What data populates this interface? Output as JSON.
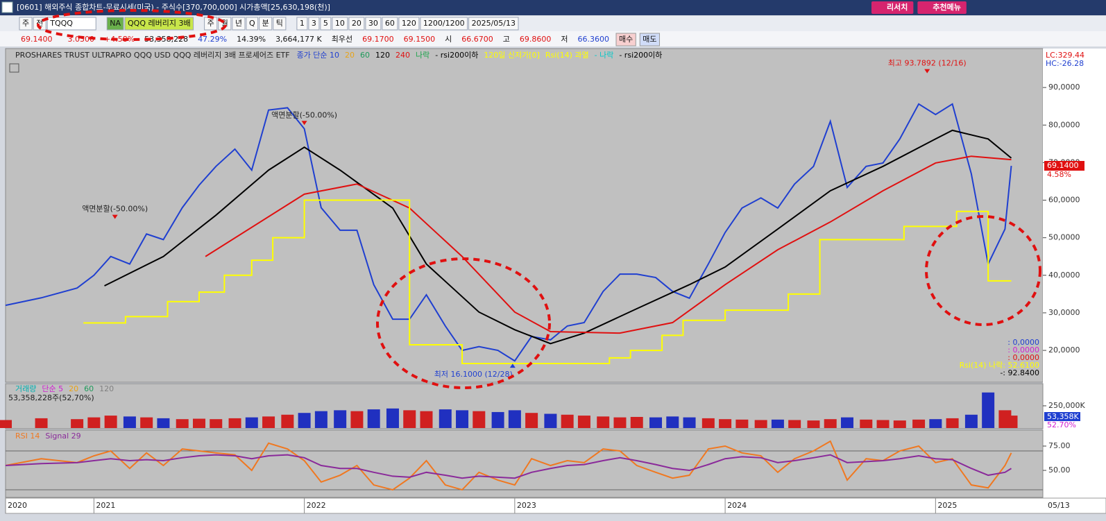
{
  "window": {
    "title": "[0601] 해외주식 종합차트-무료시세(미국) - 주식수[370,700,000] 시가총액[25,630,198(천)]",
    "buttons": [
      "리서치",
      "추천메뉴"
    ]
  },
  "toolbar": {
    "items": [
      "주",
      "전",
      "TQQQ",
      "NA",
      "QQQ 레버리지 3배",
      "주",
      "월",
      "년",
      "Q",
      "분",
      "틱",
      "1",
      "3",
      "5",
      "10",
      "20",
      "30",
      "60",
      "120",
      "1200/1200",
      "2025/05/13"
    ]
  },
  "quote": {
    "items": [
      "69.1400",
      "3.0300",
      "+4.58%",
      "53,358,228",
      "47.29%",
      "14.39%",
      "3,664,177 K",
      "최우선",
      "69.1700",
      "69.1500",
      "시",
      "66.6700",
      "고",
      "69.8600",
      "저",
      "66.3600",
      "매수",
      "매도"
    ]
  },
  "chart_data": [
    {
      "type": "line",
      "title": "PROSHARES TRUST ULTRAPRO QQQ USD  QQQ 레버리지 3배 프로셰어즈 ETF",
      "xlim": [
        2020.58,
        2025.51
      ],
      "ylim": [
        11.7,
        100.0
      ],
      "yticks": [
        {
          "value": 20,
          "label": "20,0000"
        },
        {
          "value": 30,
          "label": "30,0000"
        },
        {
          "value": 40,
          "label": "40,0000"
        },
        {
          "value": 50,
          "label": "50,0000"
        },
        {
          "value": 60,
          "label": "60,0000"
        },
        {
          "value": 70,
          "label": "70,0000"
        },
        {
          "value": 80,
          "label": "80,0000"
        },
        {
          "value": 90,
          "label": "90,0000"
        }
      ],
      "series": [
        {
          "name": "종가 단순 10",
          "color": "#1f3fd0",
          "x": [
            2020.58,
            2020.75,
            2020.92,
            2021.0,
            2021.08,
            2021.17,
            2021.25,
            2021.33,
            2021.42,
            2021.5,
            2021.58,
            2021.67,
            2021.75,
            2021.83,
            2021.92,
            2022.0,
            2022.08,
            2022.17,
            2022.25,
            2022.33,
            2022.42,
            2022.5,
            2022.58,
            2022.67,
            2022.75,
            2022.83,
            2022.92,
            2023.0,
            2023.08,
            2023.17,
            2023.25,
            2023.33,
            2023.42,
            2023.5,
            2023.58,
            2023.67,
            2023.75,
            2023.83,
            2023.92,
            2024.0,
            2024.08,
            2024.17,
            2024.25,
            2024.33,
            2024.42,
            2024.5,
            2024.58,
            2024.67,
            2024.75,
            2024.83,
            2024.92,
            2025.0,
            2025.08,
            2025.17,
            2025.25,
            2025.33,
            2025.36
          ],
          "values": [
            32,
            34,
            36.6,
            40,
            45,
            43,
            51,
            49.5,
            58,
            64,
            69,
            73.6,
            68,
            84,
            84.6,
            79,
            58,
            52,
            52,
            37.5,
            28.3,
            28.3,
            34.8,
            26.5,
            20,
            21,
            20,
            17.2,
            23.7,
            22.8,
            26.5,
            27.4,
            35.7,
            40.3,
            40.3,
            39.4,
            35.7,
            33.9,
            43,
            51.4,
            57.9,
            60.6,
            57.9,
            64.3,
            69,
            81,
            63.4,
            69,
            69.9,
            76.3,
            85.6,
            82.8,
            85.6,
            67,
            43,
            52.3,
            69.14
          ]
        },
        {
          "name": "120",
          "color": "#000000",
          "x": [
            2021.05,
            2021.33,
            2021.58,
            2021.83,
            2022.0,
            2022.17,
            2022.42,
            2022.58,
            2022.83,
            2023.0,
            2023.17,
            2023.33,
            2023.58,
            2023.83,
            2024.0,
            2024.25,
            2024.5,
            2024.75,
            2025.0,
            2025.08,
            2025.25,
            2025.36
          ],
          "values": [
            37.2,
            45,
            56,
            68,
            74.1,
            68,
            57.9,
            43,
            30.2,
            25.5,
            21.8,
            24.6,
            31.1,
            37.5,
            42.2,
            52.3,
            62.5,
            69,
            76.3,
            78.6,
            76.3,
            71.2
          ]
        },
        {
          "name": "240",
          "color": "#e01010",
          "x": [
            2021.53,
            2022.0,
            2022.25,
            2022.5,
            2022.75,
            2023.0,
            2023.17,
            2023.5,
            2023.75,
            2024.0,
            2024.25,
            2024.5,
            2024.75,
            2025.0,
            2025.17,
            2025.36
          ],
          "values": [
            45,
            61.6,
            64.3,
            57.9,
            45,
            30.2,
            25,
            24.6,
            27.4,
            37.5,
            46.8,
            54.2,
            62.5,
            69.9,
            71.7,
            70.8
          ]
        },
        {
          "name": "120일 신저가[0]",
          "color": "#ffff00",
          "step": true,
          "x": [
            2020.95,
            2021.15,
            2021.35,
            2021.5,
            2021.62,
            2021.75,
            2021.85,
            2022.0,
            2022.5,
            2022.75,
            2023.45,
            2023.55,
            2023.7,
            2023.8,
            2024.0,
            2024.3,
            2024.45,
            2024.85,
            2025.1,
            2025.25,
            2025.36
          ],
          "values": [
            27.3,
            29,
            33,
            35.5,
            40,
            44,
            50,
            60,
            21.5,
            16.5,
            18,
            20,
            24,
            28,
            30.7,
            35,
            49.5,
            53,
            57,
            38.5,
            38.5
          ]
        }
      ],
      "legend": [
        {
          "label": "20",
          "color": "#e8a317"
        },
        {
          "label": "60",
          "color": "#1d9a5a"
        },
        {
          "label": "나락",
          "color": "#1aa34a"
        },
        {
          "label": "- rsi200이하",
          "color": "#000000"
        },
        {
          "label": "Rsi(14) 과열",
          "color": "#ffff00"
        },
        {
          "label": "- 나락",
          "color": "#00c8c8"
        },
        {
          "label": "- rsi200이하",
          "color": "#000000"
        }
      ],
      "annotations": [
        {
          "text": "최고 93.7892 (12/16)",
          "x": 2024.96,
          "y": 93.7892,
          "color": "#e01010"
        },
        {
          "text": "최저 16.1000 (12/28)",
          "x": 2022.99,
          "y": 16.1,
          "color": "#1f3fd0"
        },
        {
          "text": "액면분할(-50.00%)",
          "x": 2021.1,
          "y": 55,
          "color": "#222222"
        },
        {
          "text": "액면분할(-50.00%)",
          "x": 2022.0,
          "y": 80,
          "color": "#222222"
        }
      ],
      "side_labels": [
        "LC:329.44",
        "HC:-26.28",
        "69.1400",
        "4.58%"
      ],
      "readouts": [
        {
          "text": ": 0,0000",
          "color": "#1f3fd0"
        },
        {
          "text": ": 0,0000",
          "color": "#d020d0"
        },
        {
          "text": ": 0,0000",
          "color": "#e01010"
        },
        {
          "text": "Rsi(14) 나락: 52.6100",
          "color": "#ffff00"
        },
        {
          "text": "-: 92.8400",
          "color": "#000000"
        }
      ]
    },
    {
      "type": "bar",
      "xlim": [
        2020.58,
        2025.51
      ],
      "ylim": [
        0,
        476000
      ],
      "yticks": [
        {
          "value": 250000,
          "label": "250,000K"
        }
      ],
      "legend": [
        {
          "label": "거래량",
          "color": "#00b0b0"
        },
        {
          "label": "단순 5",
          "color": "#d020d0"
        },
        {
          "label": "20",
          "color": "#e8a317"
        },
        {
          "label": "60",
          "color": "#1d9a5a"
        },
        {
          "label": "120",
          "color": "#808080"
        }
      ],
      "summary": "53,358,228주(52,70%)",
      "side_labels": [
        "53,358K",
        "52.70%"
      ],
      "x": [
        2020.58,
        2020.75,
        2020.92,
        2021.0,
        2021.08,
        2021.17,
        2021.25,
        2021.33,
        2021.42,
        2021.5,
        2021.58,
        2021.67,
        2021.75,
        2021.83,
        2021.92,
        2022.0,
        2022.08,
        2022.17,
        2022.25,
        2022.33,
        2022.42,
        2022.5,
        2022.58,
        2022.67,
        2022.75,
        2022.83,
        2022.92,
        2023.0,
        2023.08,
        2023.17,
        2023.25,
        2023.33,
        2023.42,
        2023.5,
        2023.58,
        2023.67,
        2023.75,
        2023.83,
        2023.92,
        2024.0,
        2024.08,
        2024.17,
        2024.25,
        2024.33,
        2024.42,
        2024.5,
        2024.58,
        2024.67,
        2024.75,
        2024.83,
        2024.92,
        2025.0,
        2025.08,
        2025.17,
        2025.25,
        2025.33,
        2025.36
      ],
      "values": [
        90000,
        110000,
        100000,
        120000,
        140000,
        130000,
        120000,
        110000,
        100000,
        105000,
        100000,
        110000,
        120000,
        130000,
        150000,
        170000,
        190000,
        200000,
        190000,
        210000,
        220000,
        200000,
        190000,
        210000,
        200000,
        190000,
        180000,
        200000,
        170000,
        160000,
        150000,
        140000,
        130000,
        120000,
        125000,
        120000,
        130000,
        120000,
        110000,
        100000,
        95000,
        90000,
        95000,
        90000,
        85000,
        100000,
        120000,
        95000,
        90000,
        85000,
        95000,
        100000,
        110000,
        150000,
        400000,
        200000,
        140000
      ]
    },
    {
      "type": "line",
      "xlim": [
        2020.58,
        2025.51
      ],
      "ylim": [
        22.9,
        90.7
      ],
      "yticks": [
        {
          "value": 75,
          "label": "75.00"
        },
        {
          "value": 50,
          "label": "50.00"
        }
      ],
      "hlines": [
        70,
        30
      ],
      "xticks": [
        {
          "value": 2020.58,
          "label": "2020"
        },
        2021,
        2022,
        2023,
        2024,
        2025
      ],
      "x_end_label": "05/13",
      "x": [
        2020.58,
        2020.75,
        2020.92,
        2021.0,
        2021.08,
        2021.17,
        2021.25,
        2021.33,
        2021.42,
        2021.5,
        2021.58,
        2021.67,
        2021.75,
        2021.83,
        2021.92,
        2022.0,
        2022.08,
        2022.17,
        2022.25,
        2022.33,
        2022.42,
        2022.5,
        2022.58,
        2022.67,
        2022.75,
        2022.83,
        2022.92,
        2023.0,
        2023.08,
        2023.17,
        2023.25,
        2023.33,
        2023.42,
        2023.5,
        2023.58,
        2023.67,
        2023.75,
        2023.83,
        2023.92,
        2024.0,
        2024.08,
        2024.17,
        2024.25,
        2024.33,
        2024.42,
        2024.5,
        2024.58,
        2024.67,
        2024.75,
        2024.83,
        2024.92,
        2025.0,
        2025.08,
        2025.17,
        2025.25,
        2025.33,
        2025.36
      ],
      "series": [
        {
          "name": "RSI 14",
          "color": "#f07820",
          "values": [
            55,
            62,
            58,
            65,
            70,
            52,
            68,
            55,
            72,
            70,
            68,
            66,
            50,
            78,
            72,
            60,
            38,
            45,
            55,
            35,
            30,
            42,
            60,
            35,
            30,
            48,
            40,
            35,
            62,
            55,
            60,
            58,
            72,
            70,
            55,
            48,
            42,
            45,
            72,
            75,
            68,
            65,
            48,
            62,
            70,
            80,
            40,
            62,
            60,
            70,
            75,
            58,
            62,
            35,
            32,
            55,
            68
          ]
        },
        {
          "name": "Signal 29",
          "color": "#8a2a9a",
          "values": [
            55,
            57,
            58,
            60,
            62,
            60,
            61,
            60,
            63,
            65,
            66,
            65,
            62,
            65,
            66,
            63,
            55,
            52,
            52,
            48,
            44,
            43,
            48,
            45,
            42,
            44,
            43,
            42,
            48,
            52,
            55,
            56,
            60,
            63,
            60,
            56,
            52,
            50,
            56,
            62,
            64,
            63,
            58,
            60,
            63,
            66,
            58,
            59,
            60,
            62,
            65,
            62,
            61,
            52,
            45,
            48,
            52
          ]
        }
      ]
    }
  ]
}
